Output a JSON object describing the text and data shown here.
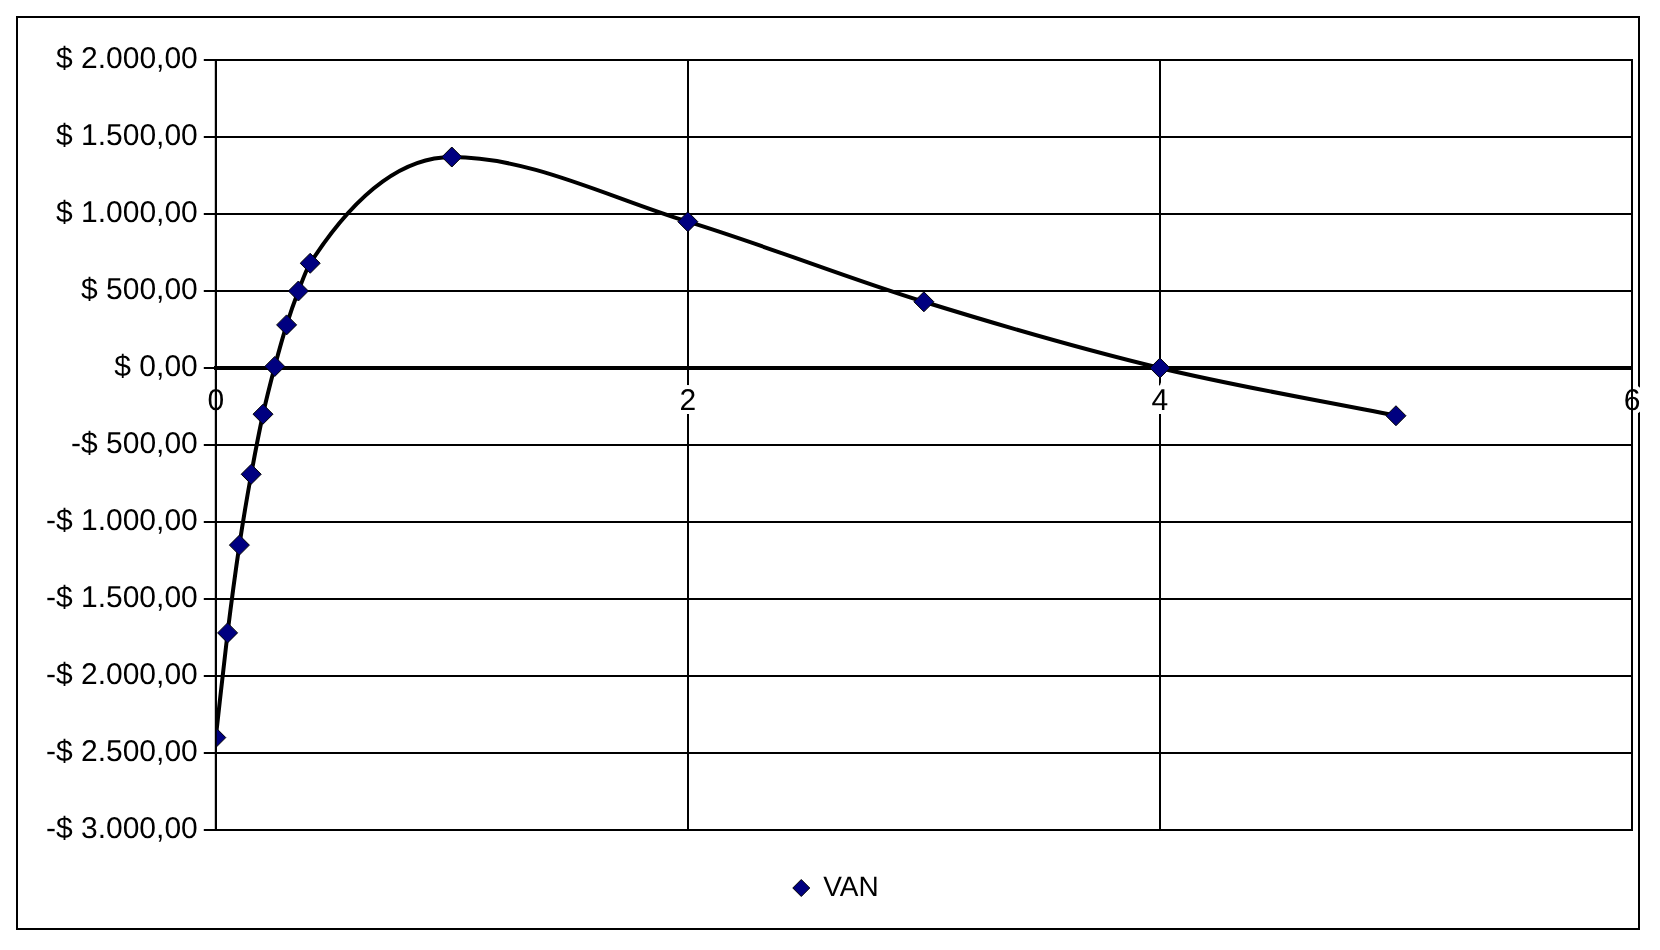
{
  "chart_data": {
    "type": "line",
    "x": [
      0,
      0.05,
      0.1,
      0.15,
      0.2,
      0.25,
      0.3,
      0.35,
      0.4,
      1,
      2,
      3,
      4,
      5
    ],
    "series": [
      {
        "name": "VAN",
        "color": "#000080",
        "values": [
          -2400,
          -1720,
          -1150,
          -690,
          -300,
          10,
          280,
          500,
          680,
          1370,
          950,
          430,
          0,
          -310
        ]
      }
    ],
    "xlim": [
      0,
      6
    ],
    "xticks": [
      0,
      2,
      4,
      6
    ],
    "ylim": [
      -3000,
      2000
    ],
    "yticks": [
      {
        "value": 2000,
        "label": "$ 2.000,00"
      },
      {
        "value": 1500,
        "label": "$ 1.500,00"
      },
      {
        "value": 1000,
        "label": "$ 1.000,00"
      },
      {
        "value": 500,
        "label": "$ 500,00"
      },
      {
        "value": 0,
        "label": "$ 0,00"
      },
      {
        "value": -500,
        "label": "-$ 500,00"
      },
      {
        "value": -1000,
        "label": "-$ 1.000,00"
      },
      {
        "value": -1500,
        "label": "-$ 1.500,00"
      },
      {
        "value": -2000,
        "label": "-$ 2.000,00"
      },
      {
        "value": -2500,
        "label": "-$ 2.500,00"
      },
      {
        "value": -3000,
        "label": "-$ 3.000,00"
      }
    ],
    "grid": true,
    "legend": "bottom",
    "marker": "diamond",
    "line_style": "solid"
  }
}
